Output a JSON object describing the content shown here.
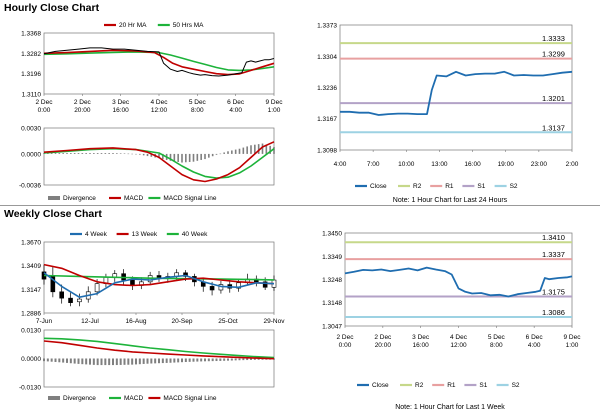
{
  "sections": {
    "hourly_title": "Hourly Close Chart",
    "weekly_title": "Weekly Close Chart"
  },
  "colors": {
    "ma_fast": "#c00000",
    "ma_slow": "#1db33a",
    "candle": "#000000",
    "close_blue": "#1f6db0",
    "r2": "#c6d88a",
    "r1": "#e8a0a0",
    "s1": "#b3a2c7",
    "s2": "#9dd2e3",
    "hist": "#7f7f7f"
  },
  "chart_data": [
    {
      "id": "hourly_price",
      "type": "line",
      "legend": [
        "20 Hr MA",
        "50 Hrs MA"
      ],
      "y_ticks": [
        "1.3368",
        "1.3282",
        "1.3196",
        "1.3110"
      ],
      "ylim": [
        1.311,
        1.3368
      ],
      "x_ticks": [
        "2 Dec 0:00",
        "2 Dec 20:00",
        "3 Dec 16:00",
        "4 Dec 12:00",
        "5 Dec 8:00",
        "6 Dec 4:00",
        "9 Dec 1:00"
      ],
      "xlim": [
        0,
        100
      ],
      "series": [
        {
          "name": "Close",
          "x": [
            0,
            5,
            10,
            15,
            20,
            25,
            30,
            35,
            40,
            45,
            50,
            52,
            55,
            58,
            60,
            63,
            65,
            68,
            70,
            73,
            76,
            80,
            83,
            86,
            88,
            90,
            92,
            94,
            96,
            98,
            100
          ],
          "y": [
            1.328,
            1.329,
            1.3295,
            1.33,
            1.3305,
            1.3305,
            1.33,
            1.33,
            1.3295,
            1.329,
            1.3288,
            1.324,
            1.3215,
            1.3205,
            1.321,
            1.32,
            1.3195,
            1.319,
            1.3192,
            1.3188,
            1.3186,
            1.319,
            1.3195,
            1.32,
            1.3245,
            1.325,
            1.3245,
            1.325,
            1.3255,
            1.3255,
            1.326
          ]
        },
        {
          "name": "20 Hr MA",
          "x": [
            0,
            10,
            20,
            30,
            40,
            48,
            52,
            56,
            60,
            65,
            70,
            75,
            80,
            85,
            90,
            95,
            100
          ],
          "y": [
            1.3282,
            1.3285,
            1.329,
            1.3295,
            1.3292,
            1.3285,
            1.3265,
            1.324,
            1.3225,
            1.3215,
            1.3205,
            1.3196,
            1.3192,
            1.3195,
            1.321,
            1.3225,
            1.324
          ]
        },
        {
          "name": "50 Hrs MA",
          "x": [
            0,
            10,
            20,
            30,
            40,
            50,
            55,
            60,
            65,
            70,
            75,
            80,
            85,
            90,
            95,
            100
          ],
          "y": [
            1.3278,
            1.328,
            1.3283,
            1.3286,
            1.3288,
            1.3285,
            1.3275,
            1.3262,
            1.3248,
            1.3235,
            1.3222,
            1.3212,
            1.321,
            1.3212,
            1.3218,
            1.3225
          ]
        }
      ]
    },
    {
      "id": "hourly_macd",
      "type": "line",
      "legend": [
        "Divergence",
        "MACD",
        "MACD Signal Line"
      ],
      "y_ticks": [
        "0.0030",
        "0.0000",
        "-0.0036"
      ],
      "ylim": [
        -0.0036,
        0.003
      ],
      "xlim": [
        0,
        100
      ],
      "series": [
        {
          "name": "MACD",
          "x": [
            0,
            10,
            20,
            30,
            40,
            45,
            50,
            55,
            60,
            65,
            70,
            75,
            80,
            85,
            90,
            95,
            100
          ],
          "y": [
            0.0002,
            0.0004,
            0.0006,
            0.0007,
            0.0005,
            0.0002,
            -0.0004,
            -0.0014,
            -0.0024,
            -0.003,
            -0.0032,
            -0.0029,
            -0.0024,
            -0.0016,
            -0.0004,
            0.0008,
            0.0014
          ]
        },
        {
          "name": "MACD Signal Line",
          "x": [
            0,
            10,
            20,
            30,
            40,
            50,
            55,
            60,
            65,
            70,
            75,
            80,
            85,
            90,
            95,
            100
          ],
          "y": [
            0.0001,
            0.0003,
            0.0005,
            0.0006,
            0.0005,
            0.0001,
            -0.0006,
            -0.0014,
            -0.0021,
            -0.0026,
            -0.0028,
            -0.0027,
            -0.0022,
            -0.0014,
            -0.0004,
            0.0006
          ]
        },
        {
          "name": "Divergence",
          "x": [
            0,
            10,
            20,
            30,
            40,
            50,
            55,
            60,
            65,
            70,
            75,
            80,
            85,
            90,
            95,
            100
          ],
          "y": [
            0.0001,
            0.0001,
            0.0001,
            0.0001,
            0.0,
            -0.0005,
            -0.0008,
            -0.001,
            -0.0009,
            -0.0006,
            -0.0001,
            0.0003,
            0.0006,
            0.001,
            0.0012,
            0.0008
          ]
        }
      ]
    },
    {
      "id": "hourly_24h",
      "type": "line",
      "y_ticks": [
        "1.3373",
        "1.3304",
        "1.3236",
        "1.3167",
        "1.3098"
      ],
      "ylim": [
        1.3098,
        1.3373
      ],
      "x_ticks": [
        "4:00",
        "7:00",
        "10:00",
        "13:00",
        "16:00",
        "19:00",
        "23:00",
        "2:00"
      ],
      "xlim": [
        0,
        24
      ],
      "levels": [
        {
          "name": "R2",
          "value": 1.3333,
          "label": "1.3333"
        },
        {
          "name": "R1",
          "value": 1.3299,
          "label": "1.3299"
        },
        {
          "name": "S1",
          "value": 1.3201,
          "label": "1.3201"
        },
        {
          "name": "S2",
          "value": 1.3137,
          "label": "1.3137"
        }
      ],
      "series": [
        {
          "name": "Close",
          "x": [
            0,
            1,
            2,
            3,
            4,
            5,
            6,
            7,
            8,
            9,
            9.5,
            10,
            11,
            12,
            13,
            14,
            15,
            16,
            17,
            18,
            19,
            20,
            21,
            22,
            23,
            24
          ],
          "y": [
            1.3182,
            1.3182,
            1.318,
            1.318,
            1.3175,
            1.3177,
            1.3178,
            1.3178,
            1.3177,
            1.3177,
            1.323,
            1.3262,
            1.326,
            1.327,
            1.3262,
            1.3265,
            1.3266,
            1.3266,
            1.327,
            1.3262,
            1.3263,
            1.3262,
            1.3262,
            1.3265,
            1.3268,
            1.327
          ]
        }
      ],
      "legend": [
        "Close",
        "R2",
        "R1",
        "S1",
        "S2"
      ],
      "note": "Note: 1 Hour Chart for Last 24 Hours"
    },
    {
      "id": "weekly_price",
      "type": "line",
      "legend": [
        "4 Week",
        "13 Week",
        "40 Week"
      ],
      "y_ticks": [
        "1.3670",
        "1.3409",
        "1.3147",
        "1.2886"
      ],
      "ylim": [
        1.2886,
        1.367
      ],
      "x_ticks": [
        "7-Jun",
        "12-Jul",
        "16-Aug",
        "20-Sep",
        "25-Oct",
        "29-Nov"
      ],
      "xlim": [
        0,
        26
      ],
      "candles": [
        {
          "x": 0,
          "o": 1.334,
          "c": 1.326,
          "h": 1.342,
          "l": 1.32
        },
        {
          "x": 1,
          "o": 1.33,
          "c": 1.312,
          "h": 1.34,
          "l": 1.306
        },
        {
          "x": 2,
          "o": 1.312,
          "c": 1.305,
          "h": 1.32,
          "l": 1.299
        },
        {
          "x": 3,
          "o": 1.305,
          "c": 1.3,
          "h": 1.312,
          "l": 1.296
        },
        {
          "x": 4,
          "o": 1.301,
          "c": 1.304,
          "h": 1.31,
          "l": 1.296
        },
        {
          "x": 5,
          "o": 1.304,
          "c": 1.312,
          "h": 1.318,
          "l": 1.3
        },
        {
          "x": 6,
          "o": 1.312,
          "c": 1.321,
          "h": 1.326,
          "l": 1.308
        },
        {
          "x": 7,
          "o": 1.321,
          "c": 1.328,
          "h": 1.332,
          "l": 1.317
        },
        {
          "x": 8,
          "o": 1.328,
          "c": 1.332,
          "h": 1.336,
          "l": 1.323
        },
        {
          "x": 9,
          "o": 1.332,
          "c": 1.325,
          "h": 1.337,
          "l": 1.32
        },
        {
          "x": 10,
          "o": 1.325,
          "c": 1.319,
          "h": 1.329,
          "l": 1.314
        },
        {
          "x": 11,
          "o": 1.319,
          "c": 1.323,
          "h": 1.328,
          "l": 1.315
        },
        {
          "x": 12,
          "o": 1.323,
          "c": 1.33,
          "h": 1.334,
          "l": 1.32
        },
        {
          "x": 13,
          "o": 1.33,
          "c": 1.327,
          "h": 1.335,
          "l": 1.323
        },
        {
          "x": 14,
          "o": 1.327,
          "c": 1.329,
          "h": 1.333,
          "l": 1.322
        },
        {
          "x": 15,
          "o": 1.329,
          "c": 1.333,
          "h": 1.337,
          "l": 1.325
        },
        {
          "x": 16,
          "o": 1.333,
          "c": 1.329,
          "h": 1.336,
          "l": 1.324
        },
        {
          "x": 17,
          "o": 1.329,
          "c": 1.323,
          "h": 1.332,
          "l": 1.318
        },
        {
          "x": 18,
          "o": 1.323,
          "c": 1.318,
          "h": 1.327,
          "l": 1.312
        },
        {
          "x": 19,
          "o": 1.318,
          "c": 1.314,
          "h": 1.323,
          "l": 1.308
        },
        {
          "x": 20,
          "o": 1.314,
          "c": 1.32,
          "h": 1.324,
          "l": 1.31
        },
        {
          "x": 21,
          "o": 1.32,
          "c": 1.316,
          "h": 1.325,
          "l": 1.311
        },
        {
          "x": 22,
          "o": 1.316,
          "c": 1.322,
          "h": 1.326,
          "l": 1.312
        },
        {
          "x": 23,
          "o": 1.322,
          "c": 1.326,
          "h": 1.332,
          "l": 1.319
        },
        {
          "x": 24,
          "o": 1.326,
          "c": 1.323,
          "h": 1.33,
          "l": 1.318
        },
        {
          "x": 25,
          "o": 1.323,
          "c": 1.317,
          "h": 1.328,
          "l": 1.314
        },
        {
          "x": 26,
          "o": 1.317,
          "c": 1.325,
          "h": 1.33,
          "l": 1.313
        }
      ],
      "series": [
        {
          "name": "4 Week",
          "x": [
            0,
            2,
            4,
            6,
            8,
            10,
            12,
            14,
            16,
            18,
            20,
            22,
            24,
            26
          ],
          "y": [
            1.333,
            1.318,
            1.306,
            1.31,
            1.322,
            1.326,
            1.325,
            1.328,
            1.33,
            1.323,
            1.318,
            1.317,
            1.322,
            1.321
          ]
        },
        {
          "name": "13 Week",
          "x": [
            0,
            2,
            4,
            6,
            8,
            10,
            12,
            14,
            16,
            18,
            20,
            22,
            24,
            26
          ],
          "y": [
            1.342,
            1.338,
            1.33,
            1.323,
            1.32,
            1.319,
            1.32,
            1.323,
            1.326,
            1.327,
            1.325,
            1.323,
            1.322,
            1.321
          ]
        },
        {
          "name": "40 Week",
          "x": [
            0,
            4,
            8,
            12,
            16,
            20,
            24,
            26
          ],
          "y": [
            1.33,
            1.329,
            1.328,
            1.327,
            1.3265,
            1.326,
            1.3255,
            1.3252
          ]
        }
      ]
    },
    {
      "id": "weekly_macd",
      "type": "line",
      "legend": [
        "Divergence",
        "MACD",
        "MACD Signal Line"
      ],
      "y_ticks": [
        "0.0130",
        "0.0000",
        "-0.0130"
      ],
      "ylim": [
        -0.013,
        0.013
      ],
      "xlim": [
        0,
        26
      ],
      "series": [
        {
          "name": "MACD",
          "x": [
            0,
            2,
            4,
            6,
            8,
            10,
            12,
            14,
            16,
            18,
            20,
            22,
            24,
            26
          ],
          "y": [
            0.008,
            0.0072,
            0.006,
            0.0048,
            0.0038,
            0.003,
            0.0025,
            0.002,
            0.0016,
            0.0012,
            0.0008,
            0.0005,
            0.0002,
            -0.0001
          ]
        },
        {
          "name": "MACD Signal Line",
          "x": [
            0,
            2,
            4,
            6,
            8,
            10,
            12,
            14,
            16,
            18,
            20,
            22,
            24,
            26
          ],
          "y": [
            0.0092,
            0.009,
            0.0085,
            0.0078,
            0.0068,
            0.0058,
            0.0048,
            0.004,
            0.0032,
            0.0025,
            0.0019,
            0.0013,
            0.0008,
            0.0004
          ]
        },
        {
          "name": "Divergence",
          "x": [
            0,
            2,
            4,
            6,
            8,
            10,
            12,
            14,
            16,
            18,
            20,
            22,
            24,
            26
          ],
          "y": [
            -0.0012,
            -0.0018,
            -0.0025,
            -0.003,
            -0.003,
            -0.0028,
            -0.0023,
            -0.002,
            -0.0016,
            -0.0013,
            -0.0011,
            -0.0008,
            -0.0006,
            -0.0005
          ]
        }
      ]
    },
    {
      "id": "weekly_1w",
      "type": "line",
      "y_ticks": [
        "1.3450",
        "1.3349",
        "1.3248",
        "1.3148",
        "1.3047"
      ],
      "ylim": [
        1.3047,
        1.345
      ],
      "x_ticks": [
        "2 Dec 0:00",
        "2 Dec 20:00",
        "3 Dec 16:00",
        "4 Dec 12:00",
        "5 Dec 8:00",
        "6 Dec 4:00",
        "9 Dec 1:00"
      ],
      "xlim": [
        0,
        100
      ],
      "levels": [
        {
          "name": "R2",
          "value": 1.341,
          "label": "1.3410"
        },
        {
          "name": "R1",
          "value": 1.3337,
          "label": "1.3337"
        },
        {
          "name": "S1",
          "value": 1.3175,
          "label": "1.3175"
        },
        {
          "name": "S2",
          "value": 1.3086,
          "label": "1.3086"
        }
      ],
      "series": [
        {
          "name": "Close",
          "x": [
            0,
            4,
            8,
            12,
            16,
            20,
            24,
            28,
            32,
            36,
            40,
            44,
            47,
            50,
            53,
            56,
            60,
            64,
            68,
            72,
            76,
            80,
            84,
            86,
            88,
            90,
            94,
            98,
            100
          ],
          "y": [
            1.3275,
            1.3282,
            1.329,
            1.3288,
            1.3292,
            1.3285,
            1.329,
            1.3296,
            1.3288,
            1.33,
            1.3292,
            1.3285,
            1.327,
            1.321,
            1.3195,
            1.3188,
            1.319,
            1.318,
            1.3182,
            1.3175,
            1.3185,
            1.319,
            1.3195,
            1.32,
            1.3255,
            1.325,
            1.3255,
            1.3258,
            1.3262
          ]
        }
      ],
      "legend": [
        "Close",
        "R2",
        "R1",
        "S1",
        "S2"
      ],
      "note": "Note: 1 Hour Chart for Last 1 Week"
    }
  ]
}
